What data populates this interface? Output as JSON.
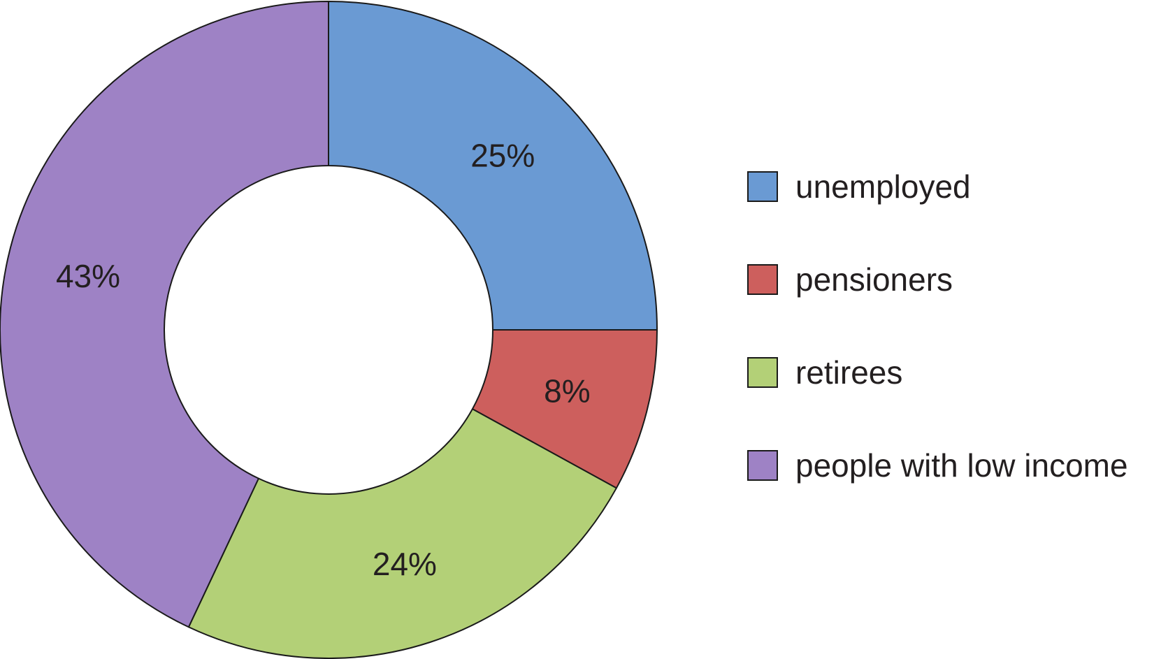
{
  "chart_data": {
    "type": "pie",
    "donut": true,
    "title": "",
    "slices": [
      {
        "label": "unemployed",
        "value": 25,
        "display": "25%",
        "color": "#6a9ad3"
      },
      {
        "label": "pensioners",
        "value": 8,
        "display": "8%",
        "color": "#cd5f5d"
      },
      {
        "label": "retirees",
        "value": 24,
        "display": "24%",
        "color": "#b3d077"
      },
      {
        "label": "people with low income",
        "value": 43,
        "display": "43%",
        "color": "#9e82c5"
      }
    ],
    "start_angle": "12 o'clock",
    "direction": "clockwise",
    "legend_position": "right"
  }
}
